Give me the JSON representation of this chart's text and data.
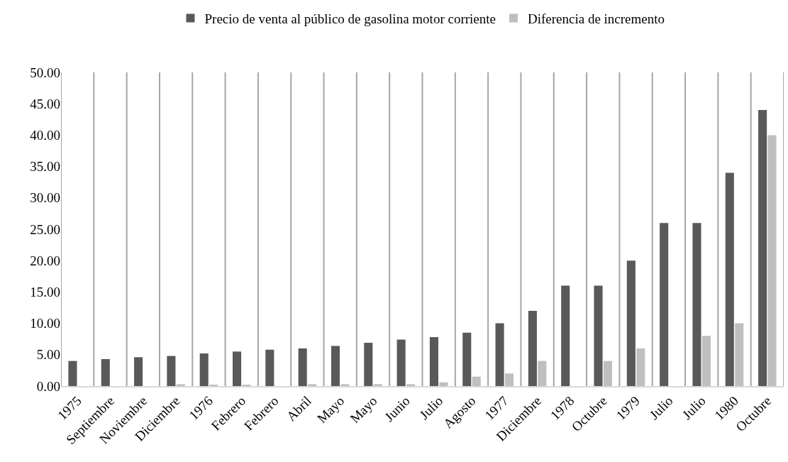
{
  "chart_data": {
    "type": "bar",
    "categories": [
      "1975",
      "Septiembre",
      "Noviembre",
      "Diciembre",
      "1976",
      "Febrero",
      "Febrero",
      "Abril",
      "Mayo",
      "Mayo",
      "Junio",
      "Julio",
      "Agosto",
      "1977",
      "Diciembre",
      "1978",
      "Octubre",
      "1979",
      "Julio",
      "Julio",
      "1980",
      "Octubre"
    ],
    "series": [
      {
        "name": "Precio de venta al público de gasolina motor corriente",
        "color": "#595959",
        "values": [
          4.0,
          4.3,
          4.6,
          4.8,
          5.2,
          5.5,
          5.8,
          6.0,
          6.4,
          6.9,
          7.4,
          7.8,
          8.5,
          10,
          12,
          16,
          16,
          20,
          26,
          26,
          34,
          44
        ]
      },
      {
        "name": "Diferencia de incremento",
        "color": "#bfbfbf",
        "values": [
          0,
          null,
          null,
          0.3,
          0.2,
          0.2,
          null,
          0.3,
          0.3,
          0.3,
          0.3,
          0.6,
          1.5,
          2,
          4,
          0,
          4,
          6,
          0,
          8,
          10,
          40
        ]
      }
    ],
    "ylim": [
      0,
      50
    ],
    "yticks": [
      {
        "value": 0,
        "label": "0.00"
      },
      {
        "value": 5,
        "label": "5.00"
      },
      {
        "value": 10,
        "label": "10.00"
      },
      {
        "value": 15,
        "label": "15.00"
      },
      {
        "value": 20,
        "label": "20.00"
      },
      {
        "value": 25,
        "label": "25.00"
      },
      {
        "value": 30,
        "label": "30.00"
      },
      {
        "value": 35,
        "label": "35.00"
      },
      {
        "value": 40,
        "label": "40.00"
      },
      {
        "value": 45,
        "label": "45.00"
      },
      {
        "value": 50,
        "label": "50.00"
      }
    ],
    "grid": "x",
    "legend": "top"
  }
}
